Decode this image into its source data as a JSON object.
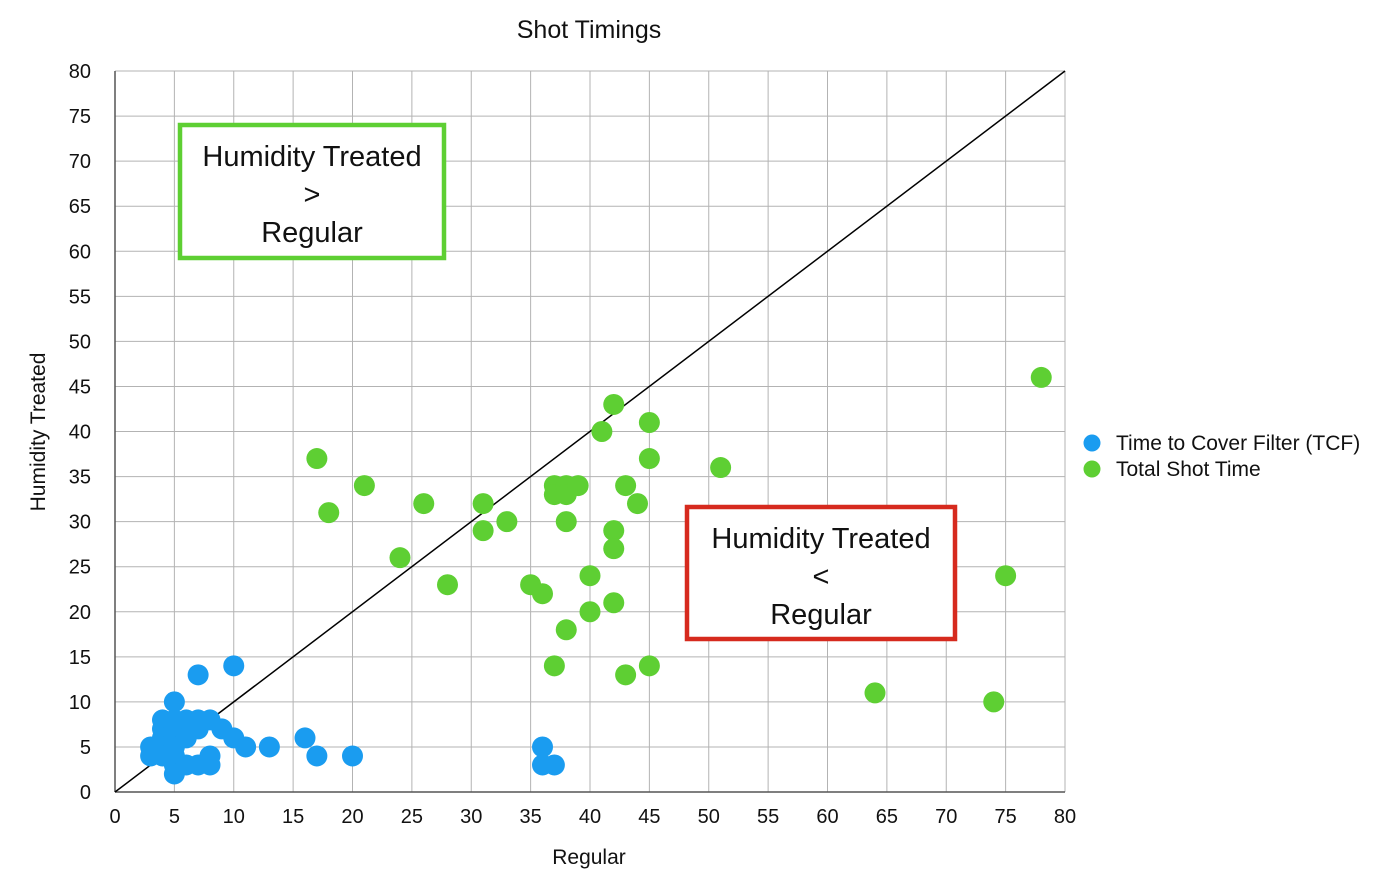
{
  "chart_data": {
    "type": "scatter",
    "title": "Shot Timings",
    "xlabel": "Regular",
    "ylabel": "Humidity Treated",
    "xlim": [
      0,
      80
    ],
    "ylim": [
      0,
      80
    ],
    "x_ticks": [
      "0",
      "5",
      "10",
      "15",
      "20",
      "25",
      "30",
      "35",
      "40",
      "45",
      "50",
      "55",
      "60",
      "65",
      "70",
      "75",
      "80"
    ],
    "y_ticks": [
      "0",
      "5",
      "10",
      "15",
      "20",
      "25",
      "30",
      "35",
      "40",
      "45",
      "50",
      "55",
      "60",
      "65",
      "70",
      "75",
      "80"
    ],
    "grid": true,
    "legend_position": "right",
    "reference_line": {
      "from": [
        0,
        0
      ],
      "to": [
        80,
        80
      ],
      "color": "#000000"
    },
    "series": [
      {
        "name": "Time to Cover Filter (TCF)",
        "color": "#1a9cf0",
        "points": [
          [
            3,
            5
          ],
          [
            3,
            4
          ],
          [
            4,
            8
          ],
          [
            4,
            7
          ],
          [
            4,
            6
          ],
          [
            4,
            5
          ],
          [
            4,
            4
          ],
          [
            5,
            10
          ],
          [
            5,
            8
          ],
          [
            5,
            7
          ],
          [
            5,
            6
          ],
          [
            5,
            5
          ],
          [
            5,
            4
          ],
          [
            5,
            3
          ],
          [
            5,
            2
          ],
          [
            6,
            8
          ],
          [
            6,
            7
          ],
          [
            6,
            6
          ],
          [
            6,
            3
          ],
          [
            7,
            13
          ],
          [
            7,
            8
          ],
          [
            7,
            7
          ],
          [
            7,
            3
          ],
          [
            8,
            8
          ],
          [
            8,
            4
          ],
          [
            8,
            3
          ],
          [
            9,
            7
          ],
          [
            10,
            14
          ],
          [
            10,
            6
          ],
          [
            11,
            5
          ],
          [
            13,
            5
          ],
          [
            16,
            6
          ],
          [
            17,
            4
          ],
          [
            20,
            4
          ],
          [
            36,
            5
          ],
          [
            36,
            3
          ],
          [
            37,
            3
          ]
        ]
      },
      {
        "name": "Total Shot Time",
        "color": "#5ecf33",
        "points": [
          [
            17,
            37
          ],
          [
            18,
            31
          ],
          [
            21,
            34
          ],
          [
            24,
            26
          ],
          [
            26,
            32
          ],
          [
            28,
            23
          ],
          [
            31,
            32
          ],
          [
            31,
            29
          ],
          [
            33,
            30
          ],
          [
            35,
            23
          ],
          [
            36,
            22
          ],
          [
            37,
            34
          ],
          [
            37,
            33
          ],
          [
            37,
            14
          ],
          [
            38,
            34
          ],
          [
            38,
            33
          ],
          [
            38,
            30
          ],
          [
            38,
            18
          ],
          [
            39,
            34
          ],
          [
            40,
            24
          ],
          [
            40,
            20
          ],
          [
            41,
            40
          ],
          [
            42,
            43
          ],
          [
            42,
            29
          ],
          [
            42,
            27
          ],
          [
            42,
            21
          ],
          [
            43,
            34
          ],
          [
            43,
            13
          ],
          [
            44,
            32
          ],
          [
            45,
            41
          ],
          [
            45,
            37
          ],
          [
            45,
            14
          ],
          [
            51,
            36
          ],
          [
            64,
            11
          ],
          [
            74,
            10
          ],
          [
            75,
            24
          ],
          [
            78,
            46
          ]
        ]
      }
    ],
    "annotations": [
      {
        "name": "upper-box",
        "lines": [
          "Humidity Treated",
          ">",
          "Regular"
        ],
        "border_color": "#5ecf33"
      },
      {
        "name": "lower-box",
        "lines": [
          "Humidity Treated",
          "<",
          "Regular"
        ],
        "border_color": "#d62a1e"
      }
    ]
  }
}
